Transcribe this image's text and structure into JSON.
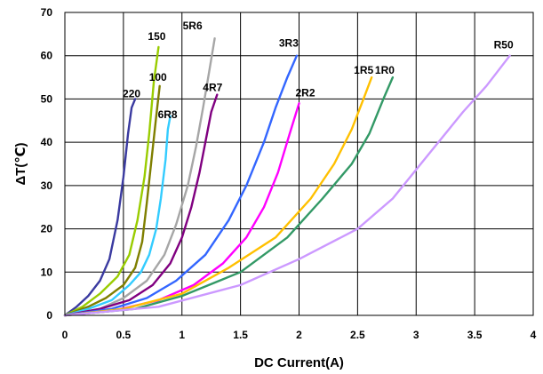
{
  "chart_data": {
    "type": "line",
    "title": "",
    "xlabel": "DC Current(A)",
    "ylabel": "ΔT(℃)",
    "xlim": [
      0,
      4
    ],
    "ylim": [
      0,
      70
    ],
    "xticks": [
      "0",
      "0.5",
      "1",
      "1.5",
      "2",
      "2.5",
      "3",
      "3.5",
      "4"
    ],
    "yticks": [
      "0",
      "10",
      "20",
      "30",
      "40",
      "50",
      "60",
      "70"
    ],
    "grid": true,
    "legend": "none (series labeled inline at line ends)",
    "series": [
      {
        "name": "220",
        "color": "#3a3aa0",
        "x": [
          0,
          0.1,
          0.2,
          0.3,
          0.38,
          0.45,
          0.5,
          0.54,
          0.57,
          0.6
        ],
        "y": [
          0,
          2,
          4.5,
          8,
          13,
          22,
          32,
          42,
          48,
          50
        ]
      },
      {
        "name": "150",
        "color": "#99cc00",
        "x": [
          0,
          0.15,
          0.3,
          0.45,
          0.55,
          0.62,
          0.68,
          0.72,
          0.76,
          0.8
        ],
        "y": [
          0,
          2,
          5,
          9,
          14,
          22,
          32,
          42,
          54,
          62
        ]
      },
      {
        "name": "100",
        "color": "#7f7f00",
        "x": [
          0,
          0.2,
          0.35,
          0.5,
          0.6,
          0.66,
          0.7,
          0.74,
          0.78,
          0.81
        ],
        "y": [
          0,
          2,
          4,
          7,
          11,
          17,
          26,
          36,
          46,
          53
        ]
      },
      {
        "name": "6R8",
        "color": "#33ccff",
        "x": [
          0,
          0.2,
          0.4,
          0.55,
          0.65,
          0.72,
          0.78,
          0.82,
          0.86,
          0.88,
          0.9
        ],
        "y": [
          0,
          1.5,
          3.5,
          7,
          10,
          14,
          20,
          27,
          36,
          43,
          46
        ]
      },
      {
        "name": "5R6",
        "color": "#a6a6a6",
        "x": [
          0,
          0.3,
          0.5,
          0.7,
          0.85,
          0.95,
          1.05,
          1.12,
          1.18,
          1.23,
          1.28
        ],
        "y": [
          0,
          1.5,
          4,
          8,
          14,
          21,
          30,
          39,
          48,
          56,
          64
        ]
      },
      {
        "name": "4R7",
        "color": "#800080",
        "x": [
          0,
          0.3,
          0.55,
          0.75,
          0.9,
          1.0,
          1.08,
          1.15,
          1.2,
          1.25,
          1.3
        ],
        "y": [
          0,
          1.5,
          3.5,
          7,
          12,
          18,
          25,
          33,
          40,
          47,
          51
        ]
      },
      {
        "name": "3R3",
        "color": "#3366ff",
        "x": [
          0,
          0.4,
          0.7,
          0.95,
          1.2,
          1.4,
          1.55,
          1.7,
          1.8,
          1.9,
          1.98
        ],
        "y": [
          0,
          1.5,
          4,
          8,
          14,
          22,
          30,
          40,
          48,
          55,
          60
        ]
      },
      {
        "name": "2R2",
        "color": "#ff00ff",
        "x": [
          0,
          0.4,
          0.8,
          1.1,
          1.35,
          1.55,
          1.7,
          1.82,
          1.92,
          2.0
        ],
        "y": [
          0,
          1,
          3.5,
          7,
          12,
          18,
          25,
          33,
          42,
          49
        ]
      },
      {
        "name": "1R5",
        "color": "#ffc000",
        "x": [
          0,
          0.5,
          1.0,
          1.4,
          1.8,
          2.1,
          2.3,
          2.45,
          2.55,
          2.62
        ],
        "y": [
          0,
          1.5,
          5,
          11,
          18,
          27,
          35,
          43,
          50,
          55
        ]
      },
      {
        "name": "1R0",
        "color": "#339966",
        "x": [
          0,
          0.6,
          1.0,
          1.5,
          1.9,
          2.2,
          2.45,
          2.6,
          2.72,
          2.8
        ],
        "y": [
          0,
          1.5,
          4.5,
          10,
          18,
          27,
          35,
          42,
          50,
          55
        ]
      },
      {
        "name": "R50",
        "color": "#cc99ff",
        "x": [
          0,
          0.8,
          1.5,
          2.0,
          2.5,
          2.8,
          3.1,
          3.4,
          3.6,
          3.8
        ],
        "y": [
          0,
          2,
          7,
          13,
          20,
          27,
          37,
          47,
          53,
          60
        ]
      }
    ]
  }
}
